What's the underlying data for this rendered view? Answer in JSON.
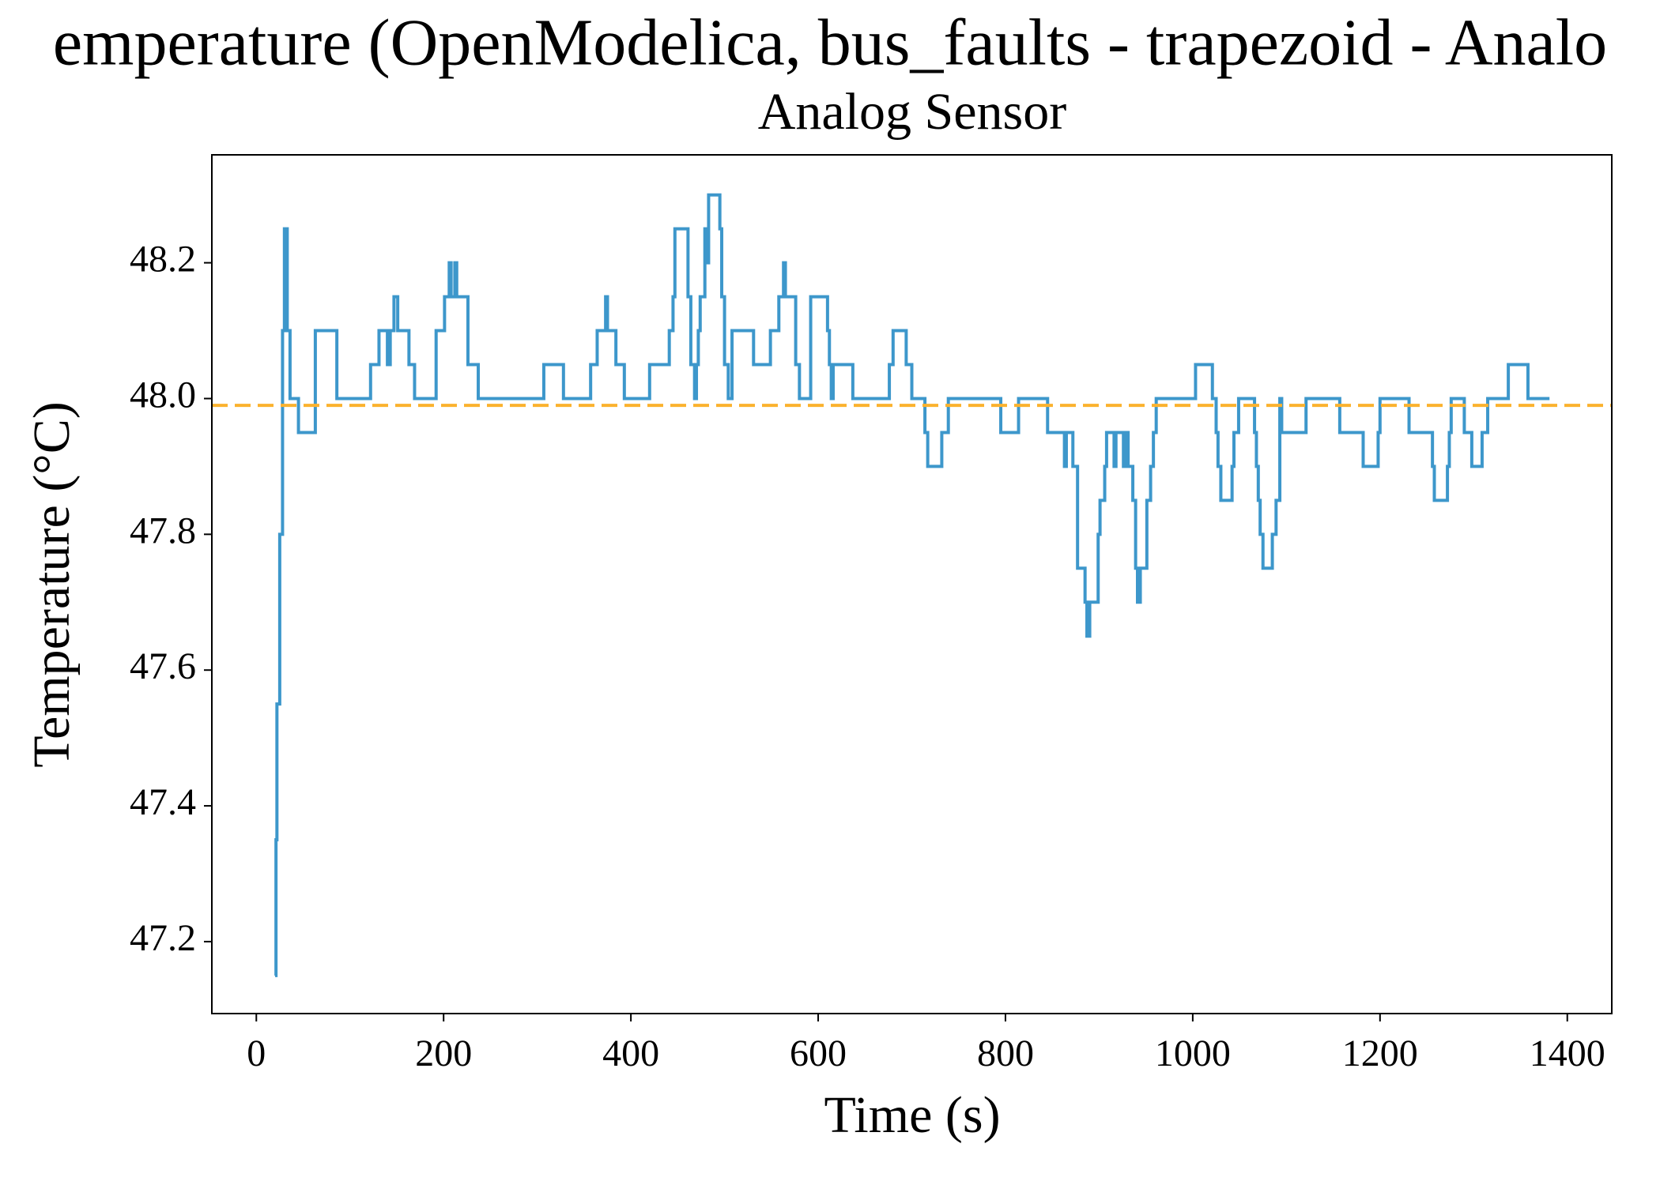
{
  "chart_data": {
    "type": "line",
    "title": "emperature (OpenModelica, bus_faults - trapezoid - Analo",
    "subtitle": "Analog Sensor",
    "x_label": "Time (s)",
    "y_label": "Temperature (°C)",
    "drawstyle": "steps-post",
    "xlim": [
      -47.5,
      1447.5
    ],
    "ylim": [
      47.094,
      48.359
    ],
    "xticks": [
      0,
      200,
      400,
      600,
      800,
      1000,
      1200,
      1400
    ],
    "yticks": [
      47.2,
      47.4,
      47.6,
      47.8,
      {
        "value": 48,
        "label": "48.0"
      },
      48.2
    ],
    "grid": false,
    "hlines": [
      {
        "value": 47.99,
        "color": "#fbb22e",
        "style": "dashed"
      }
    ],
    "x": [
      20,
      21,
      22,
      25,
      28,
      30,
      33,
      36,
      45,
      63,
      86,
      122,
      131,
      140,
      143,
      147,
      151,
      163,
      169,
      192,
      201,
      206,
      208,
      212,
      214,
      226,
      237,
      307,
      328,
      357,
      364,
      373,
      375,
      384,
      393,
      420,
      441,
      445,
      447,
      461,
      464,
      468,
      470,
      472,
      474,
      479,
      481,
      483,
      495,
      497,
      500,
      504,
      508,
      531,
      549,
      558,
      563,
      565,
      576,
      580,
      592,
      610,
      612,
      614,
      616,
      637,
      676,
      680,
      694,
      700,
      714,
      717,
      732,
      739,
      795,
      814,
      845,
      863,
      865,
      872,
      877,
      885,
      887,
      890,
      899,
      901,
      906,
      908,
      916,
      918,
      926,
      928,
      931,
      936,
      939,
      941,
      944,
      951,
      955,
      958,
      961,
      1003,
      1021,
      1025,
      1027,
      1030,
      1042,
      1044,
      1049,
      1066,
      1068,
      1070,
      1072,
      1075,
      1085,
      1089,
      1093,
      1095,
      1121,
      1157,
      1182,
      1198,
      1200,
      1231,
      1256,
      1258,
      1272,
      1274,
      1276,
      1290,
      1298,
      1309,
      1315,
      1337,
      1358,
      1381
    ],
    "series": [
      {
        "color": "#3d97cb",
        "values": [
          47.15,
          47.35,
          47.55,
          47.8,
          48.1,
          48.25,
          48.1,
          48.0,
          47.95,
          48.1,
          48.0,
          48.05,
          48.1,
          48.05,
          48.1,
          48.15,
          48.1,
          48.05,
          48.0,
          48.1,
          48.15,
          48.2,
          48.15,
          48.2,
          48.15,
          48.05,
          48.0,
          48.05,
          48.0,
          48.05,
          48.1,
          48.15,
          48.1,
          48.05,
          48.0,
          48.05,
          48.1,
          48.15,
          48.25,
          48.15,
          48.05,
          48.0,
          48.05,
          48.1,
          48.15,
          48.25,
          48.2,
          48.3,
          48.25,
          48.15,
          48.05,
          48.0,
          48.1,
          48.05,
          48.1,
          48.15,
          48.2,
          48.15,
          48.05,
          48.0,
          48.15,
          48.1,
          48.05,
          48.0,
          48.05,
          48.0,
          48.05,
          48.1,
          48.05,
          48.0,
          47.95,
          47.9,
          47.95,
          48.0,
          47.95,
          48.0,
          47.95,
          47.9,
          47.95,
          47.9,
          47.75,
          47.7,
          47.65,
          47.7,
          47.8,
          47.85,
          47.9,
          47.95,
          47.9,
          47.95,
          47.9,
          47.95,
          47.9,
          47.85,
          47.75,
          47.7,
          47.75,
          47.85,
          47.9,
          47.95,
          48.0,
          48.05,
          48.0,
          47.95,
          47.9,
          47.85,
          47.9,
          47.95,
          48.0,
          47.95,
          47.9,
          47.85,
          47.8,
          47.75,
          47.8,
          47.85,
          48.0,
          47.95,
          48.0,
          47.95,
          47.9,
          47.95,
          48.0,
          47.95,
          47.9,
          47.85,
          47.9,
          47.95,
          48.0,
          47.95,
          47.9,
          47.95,
          48.0,
          48.05,
          48.0,
          48.0
        ]
      }
    ]
  }
}
